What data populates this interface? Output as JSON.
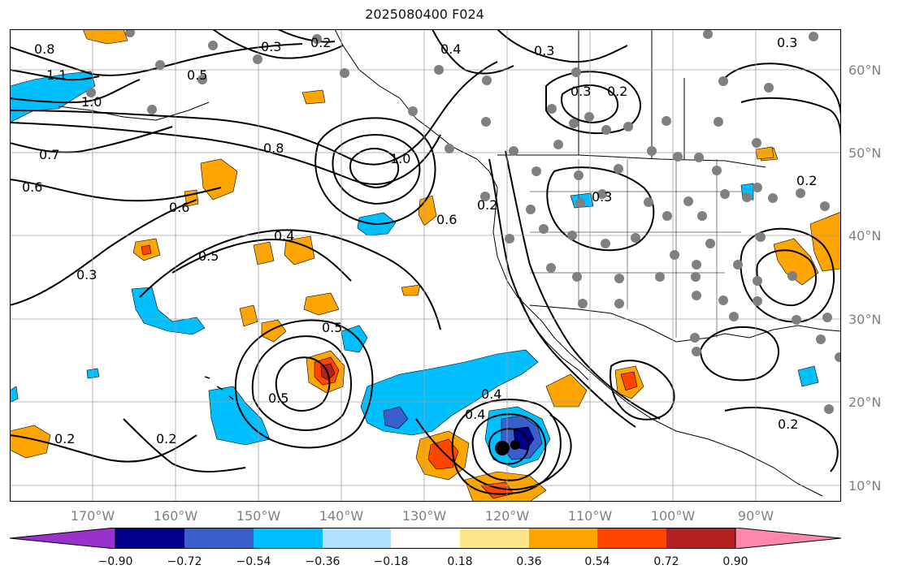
{
  "title": "2025080400 F024",
  "lon_labels": [
    "170°W",
    "160°W",
    "150°W",
    "140°W",
    "130°W",
    "120°W",
    "110°W",
    "100°W",
    "90°W"
  ],
  "lat_labels": [
    "60°N",
    "50°N",
    "40°N",
    "30°N",
    "20°N",
    "10°N"
  ],
  "contour_labels": [
    "0.8",
    "1.1",
    "1.0",
    "0.7",
    "0.6",
    "0.3",
    "0.5",
    "0.2",
    "0.4",
    "0.8",
    "1.0",
    "0.6",
    "0.4",
    "0.5",
    "0.3",
    "0.2",
    "0.6",
    "0.3",
    "0.5",
    "0.5",
    "0.4",
    "0.3",
    "0.2",
    "0.3",
    "0.2",
    "0.2",
    "0.4",
    "0.3",
    "0.2",
    "0.2"
  ],
  "colorbar": {
    "tick_labels": [
      "−0.90",
      "−0.72",
      "−0.54",
      "−0.36",
      "−0.18",
      "0.18",
      "0.36",
      "0.54",
      "0.72",
      "0.90"
    ],
    "colors": [
      "#9932cc",
      "#00008b",
      "#3a5fcd",
      "#00bfff",
      "#b0e2ff",
      "#ffffff",
      "#fde68a",
      "#ffa500",
      "#ff4500",
      "#b22222",
      "#ff88aa"
    ]
  },
  "colors": {
    "grid": "#a0a0a0",
    "contour": "#000000",
    "station_dot": "#808080",
    "low_center": "#000000"
  }
}
